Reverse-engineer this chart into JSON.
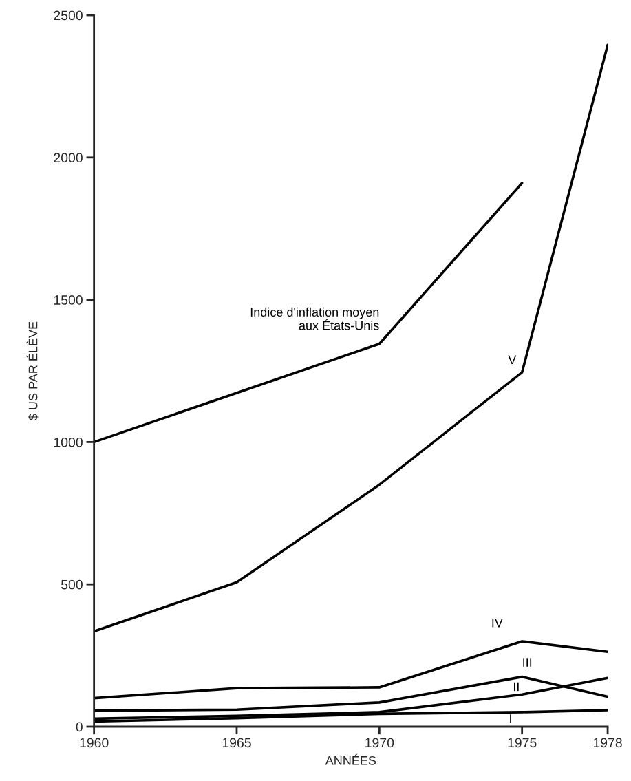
{
  "chart_data": {
    "type": "line",
    "xlabel": "ANNÉES",
    "ylabel": "$ US PAR ÉLÈVE",
    "x": [
      1960,
      1965,
      1970,
      1975,
      1978
    ],
    "series": [
      {
        "name": "Indice d'inflation moyen\naux États-Unis",
        "color": "#000000",
        "x": [
          1960,
          1970,
          1975
        ],
        "values": [
          1000,
          1345,
          1910
        ]
      },
      {
        "name": "V",
        "color": "#000000",
        "values": [
          335,
          507,
          850,
          1245,
          2395
        ]
      },
      {
        "name": "IV",
        "color": "#000000",
        "values": [
          100,
          135,
          138,
          300,
          263
        ]
      },
      {
        "name": "III",
        "color": "#000000",
        "values": [
          56,
          60,
          85,
          175,
          105
        ]
      },
      {
        "name": "II",
        "color": "#000000",
        "values": [
          28,
          38,
          51,
          113,
          171
        ]
      },
      {
        "name": "I",
        "color": "#000000",
        "values": [
          18,
          30,
          45,
          51,
          58
        ]
      }
    ],
    "xlim": [
      1960,
      1978
    ],
    "xticks": [
      1960,
      1965,
      1970,
      1975,
      1978
    ],
    "ylim": [
      0,
      2500
    ],
    "yticks": [
      0,
      500,
      1000,
      1500,
      2000,
      2500
    ],
    "grid": false,
    "legend": false,
    "marker": "none",
    "line_style": "solid"
  }
}
